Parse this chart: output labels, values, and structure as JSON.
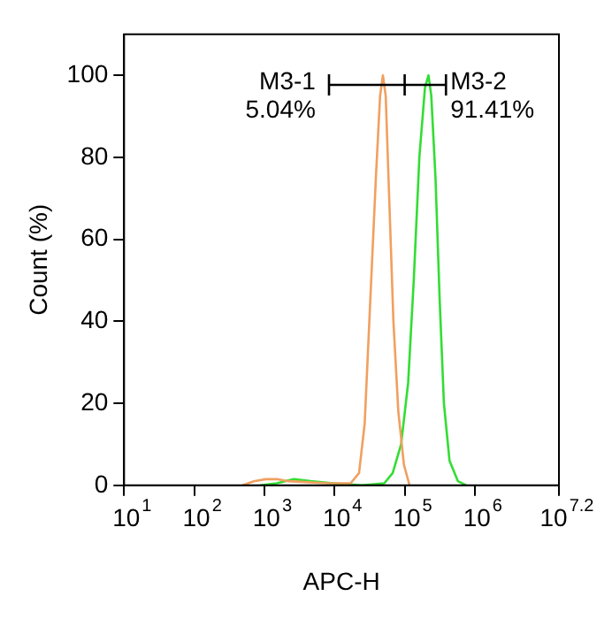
{
  "chart_data": {
    "type": "line",
    "xlabel": "APC-H",
    "ylabel": "Count (%)",
    "log": "x",
    "grid": false,
    "legend": false,
    "marker": "none",
    "line_style": "solid",
    "xlim": [
      10,
      15848932
    ],
    "xticks": [
      {
        "value": 10,
        "label": "10$^{1}$"
      },
      {
        "value": 100,
        "label": "10$^{2}$"
      },
      {
        "value": 1000,
        "label": "10$^{3}$"
      },
      {
        "value": 10000,
        "label": "10$^{4}$"
      },
      {
        "value": 100000,
        "label": "10$^{5}$"
      },
      {
        "value": 1000000,
        "label": "10$^{6}$"
      },
      {
        "value": 15848932,
        "label": "10$^{7.2}$"
      }
    ],
    "ylim": [
      0,
      110
    ],
    "yticks": [
      0,
      20,
      40,
      60,
      80,
      100
    ],
    "series": [
      {
        "color": "#f0a060",
        "x": [
          490,
          708,
          1047,
          1514,
          2188,
          3802,
          7943,
          16982,
          22387,
          26915,
          32359,
          38905,
          44668,
          48978,
          53703,
          58884,
          69183,
          81283,
          97724,
          117490
        ],
        "values": [
          0,
          1,
          1.5,
          1.5,
          1,
          0.8,
          0.5,
          0.5,
          3,
          15,
          45,
          75,
          95,
          100,
          95,
          75,
          40,
          18,
          5,
          0
        ]
      },
      {
        "color": "#33dd33",
        "x": [
          871,
          1514,
          2630,
          4571,
          9550,
          24547,
          51286,
          67608,
          89125,
          112202,
          134896,
          162181,
          195000,
          218776,
          239883,
          275423,
          316228,
          363078,
          436516,
          575440,
          758578
        ],
        "values": [
          0,
          0.5,
          1.5,
          1,
          0.5,
          0,
          0.5,
          3,
          10,
          25,
          50,
          80,
          97,
          100,
          95,
          75,
          45,
          20,
          6,
          1,
          0
        ]
      }
    ],
    "annotations": [
      "M3-1 5.04%",
      "M3-2 91.41%"
    ]
  }
}
